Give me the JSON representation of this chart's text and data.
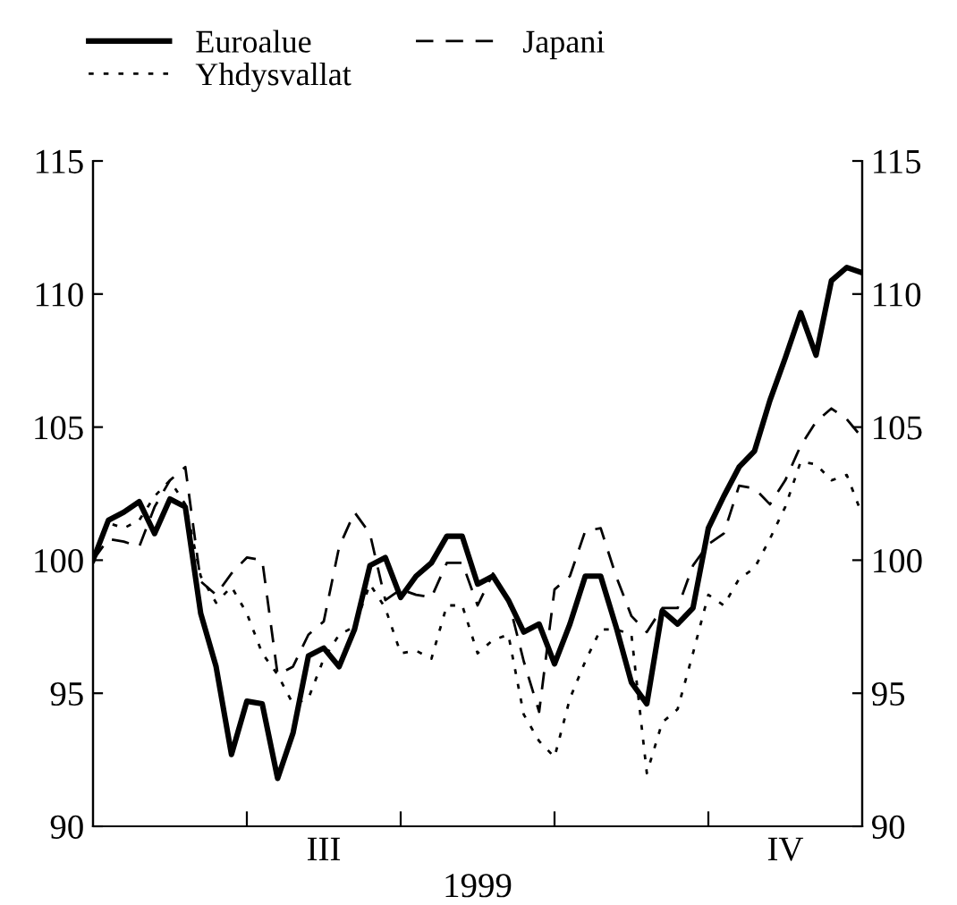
{
  "chart_data": {
    "type": "line",
    "xlabel": "1999",
    "legend": "top",
    "categories": [
      null,
      null,
      null,
      null,
      null,
      null,
      null,
      null,
      null,
      null,
      null,
      null,
      null,
      null,
      null,
      "III",
      null,
      null,
      null,
      null,
      null,
      null,
      null,
      null,
      null,
      null,
      null,
      null,
      null,
      null,
      null,
      null,
      null,
      null,
      null,
      null,
      null,
      null,
      null,
      null,
      null,
      null,
      null,
      null,
      null,
      "IV",
      null,
      null,
      null,
      null,
      null
    ],
    "ylim": [
      90,
      115
    ],
    "yticks": [
      90,
      95,
      100,
      105,
      110,
      115
    ],
    "y2lim": [
      90,
      115
    ],
    "y2ticks": [
      90,
      95,
      100,
      105,
      110,
      115
    ],
    "grid": false,
    "series": [
      {
        "name": "Euroalue",
        "color": "#000000",
        "line_style": "solid",
        "values": [
          100.0,
          101.5,
          101.8,
          102.2,
          101.0,
          102.3,
          102.0,
          98.0,
          96.0,
          92.7,
          94.7,
          94.6,
          91.8,
          93.5,
          96.4,
          96.7,
          96.0,
          97.4,
          99.8,
          100.1,
          98.6,
          99.4,
          99.9,
          100.9,
          100.9,
          99.1,
          99.4,
          98.5,
          97.3,
          97.6,
          96.1,
          97.6,
          99.4,
          99.4,
          97.5,
          95.4,
          94.6,
          98.1,
          97.6,
          98.2,
          101.2,
          102.4,
          103.5,
          104.1,
          106.0,
          107.6,
          109.3,
          107.7,
          110.5,
          111.0,
          110.8
        ]
      },
      {
        "name": "Yhdysvallat",
        "color": "#000000",
        "line_style": "dotted",
        "values": [
          100.0,
          101.4,
          101.2,
          101.5,
          102.4,
          103.0,
          102.1,
          99.4,
          98.4,
          99.0,
          98.0,
          96.5,
          95.7,
          94.6,
          94.8,
          96.3,
          97.2,
          97.5,
          99.1,
          98.2,
          96.5,
          96.6,
          96.3,
          98.3,
          98.3,
          96.5,
          97.0,
          97.2,
          94.2,
          93.2,
          92.6,
          94.8,
          96.2,
          97.4,
          97.4,
          97.2,
          92.0,
          93.9,
          94.4,
          96.5,
          98.7,
          98.3,
          99.3,
          99.7,
          100.8,
          102.0,
          103.7,
          103.6,
          103.0,
          103.2,
          101.7
        ]
      },
      {
        "name": "Japani",
        "color": "#000000",
        "line_style": "dashed",
        "values": [
          100.0,
          100.8,
          100.7,
          100.5,
          102.0,
          103.0,
          103.5,
          99.2,
          98.7,
          99.5,
          100.1,
          100.0,
          95.7,
          96.0,
          97.2,
          97.7,
          100.5,
          101.8,
          101.0,
          98.5,
          98.9,
          98.7,
          98.6,
          99.9,
          99.9,
          98.3,
          99.5,
          98.5,
          96.2,
          94.3,
          98.9,
          99.4,
          101.1,
          101.2,
          99.4,
          97.9,
          97.3,
          98.2,
          98.2,
          99.8,
          100.6,
          101.0,
          102.8,
          102.7,
          102.1,
          103.0,
          104.3,
          105.2,
          105.7,
          105.3,
          104.6
        ]
      }
    ]
  }
}
